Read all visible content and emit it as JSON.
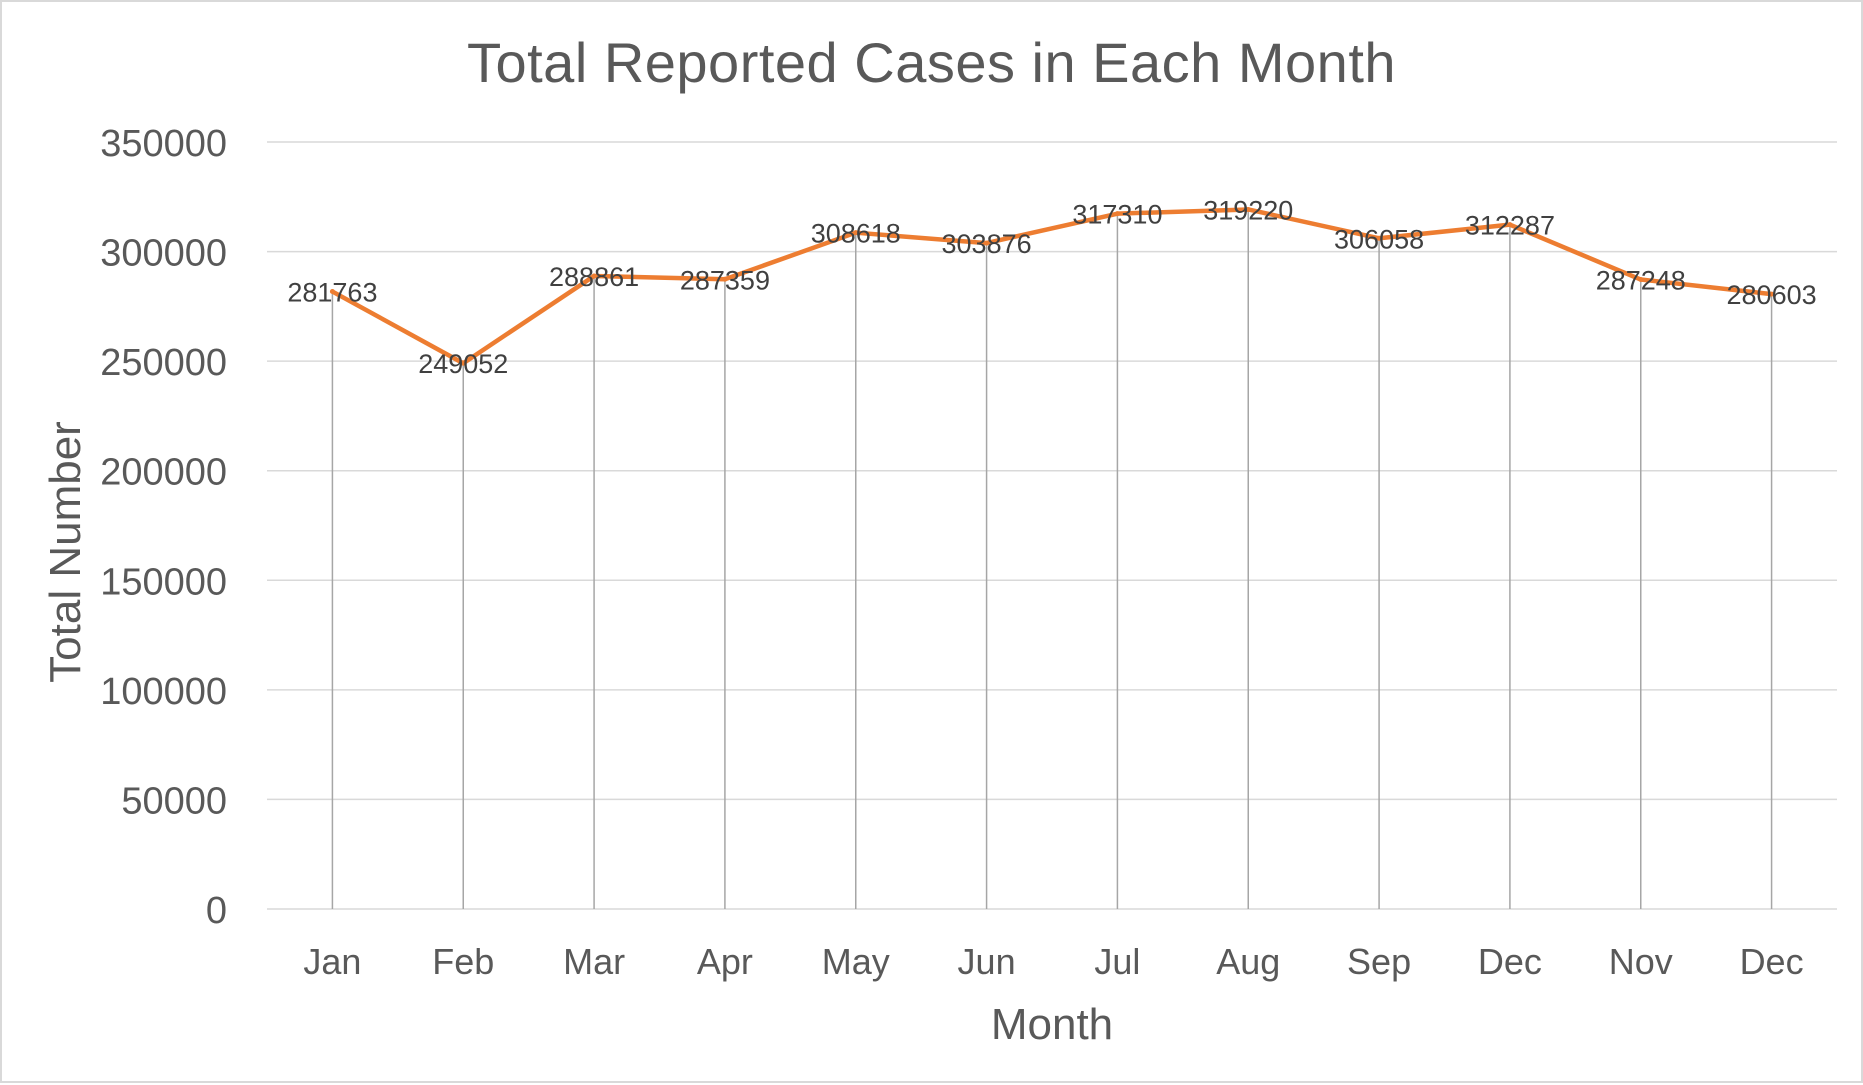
{
  "chart_data": {
    "type": "line",
    "title": "Total Reported Cases in Each Month",
    "xlabel": "Month",
    "ylabel": "Total Number",
    "categories": [
      "Jan",
      "Feb",
      "Mar",
      "Apr",
      "May",
      "Jun",
      "Jul",
      "Aug",
      "Sep",
      "Dec",
      "Nov",
      "Dec"
    ],
    "values": [
      281763,
      249052,
      288861,
      287359,
      308618,
      303876,
      317310,
      319220,
      306058,
      312287,
      287248,
      280603
    ],
    "y_ticks": [
      "0",
      "50000",
      "100000",
      "150000",
      "200000",
      "250000",
      "300000",
      "350000"
    ],
    "ylim": [
      0,
      350000
    ],
    "grid": true,
    "vertical_drop_lines": true,
    "data_labels": true,
    "legend": "none",
    "colors": {
      "line": "#ED7D31",
      "gridline": "#d9d9d9",
      "drop_line": "#a6a6a6",
      "text": "#595959",
      "data_label": "#404040"
    }
  }
}
